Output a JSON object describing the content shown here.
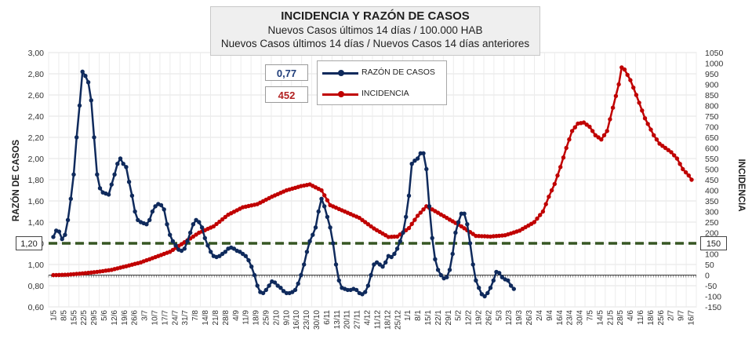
{
  "header": {
    "title": "INCIDENCIA Y RAZÓN DE CASOS",
    "subtitle1": "Nuevos Casos últimos 14 días / 100.000 HAB",
    "subtitle2": "Nuevos Casos últimos 14 días / Nuevos Casos 14 días anteriores"
  },
  "current": {
    "ratio": "0,77",
    "incidence": "452"
  },
  "reference": {
    "ratio": "1,20",
    "incidence": "150"
  },
  "colors": {
    "ratio": "#0f2a5c",
    "incidence": "#c00000",
    "reference": "#375623",
    "ratio_text": "#1f3d7a",
    "incidence_text": "#b22222"
  },
  "chart_data": {
    "type": "line",
    "title": "INCIDENCIA Y RAZÓN DE CASOS",
    "ylabel_left": "RAZÓN DE CASOS",
    "ylabel_right": "INCIDENCIA",
    "yleft_range": [
      0.6,
      3.0
    ],
    "yright_range": [
      -150,
      1050
    ],
    "yleft_ticks": [
      "3,00",
      "2,80",
      "2,60",
      "2,40",
      "2,20",
      "2,00",
      "1,80",
      "1,60",
      "1,40",
      "1,20",
      "1,00",
      "0,80",
      "0,60"
    ],
    "yright_ticks": [
      "1050",
      "1000",
      "950",
      "900",
      "850",
      "800",
      "750",
      "700",
      "650",
      "600",
      "550",
      "500",
      "450",
      "400",
      "350",
      "300",
      "250",
      "200",
      "150",
      "100",
      "50",
      "0",
      "-50",
      "-100",
      "-150"
    ],
    "x_labels": [
      "1/5",
      "8/5",
      "15/5",
      "22/5",
      "29/5",
      "5/6",
      "12/6",
      "19/6",
      "26/6",
      "3/7",
      "10/7",
      "17/7",
      "24/7",
      "31/7",
      "7/8",
      "14/8",
      "21/8",
      "28/8",
      "4/9",
      "11/9",
      "18/9",
      "25/9",
      "2/10",
      "9/10",
      "16/10",
      "23/10",
      "30/10",
      "6/11",
      "13/11",
      "20/11",
      "27/11",
      "4/12",
      "11/12",
      "18/12",
      "25/12",
      "1/1",
      "8/1",
      "15/1",
      "22/1",
      "29/1",
      "5/2",
      "12/2",
      "19/2",
      "26/2",
      "5/3",
      "12/3",
      "19/3",
      "26/3",
      "2/4",
      "9/4",
      "16/4",
      "23/4",
      "30/4",
      "7/5",
      "14/5",
      "21/5",
      "28/5",
      "4/6",
      "11/6",
      "18/6",
      "25/6",
      "2/7",
      "9/7",
      "16/7"
    ],
    "reference_line": {
      "ratio": 1.2,
      "incidence": 150
    },
    "series": [
      {
        "name": "RAZÓN DE CASOS",
        "axis": "left",
        "points": [
          [
            0,
            1.26
          ],
          [
            1,
            1.32
          ],
          [
            2,
            1.31
          ],
          [
            3,
            1.24
          ],
          [
            4,
            1.28
          ],
          [
            5,
            1.42
          ],
          [
            6,
            1.62
          ],
          [
            7,
            1.85
          ],
          [
            8,
            2.2
          ],
          [
            9,
            2.5
          ],
          [
            10,
            2.82
          ],
          [
            11,
            2.78
          ],
          [
            12,
            2.72
          ],
          [
            13,
            2.55
          ],
          [
            14,
            2.2
          ],
          [
            15,
            1.85
          ],
          [
            16,
            1.72
          ],
          [
            17,
            1.68
          ],
          [
            18,
            1.67
          ],
          [
            19,
            1.66
          ],
          [
            21,
            1.85
          ],
          [
            22,
            1.95
          ],
          [
            23,
            2.0
          ],
          [
            24,
            1.95
          ],
          [
            25,
            1.92
          ],
          [
            26,
            1.78
          ],
          [
            27,
            1.65
          ],
          [
            28,
            1.5
          ],
          [
            29,
            1.42
          ],
          [
            30,
            1.4
          ],
          [
            31,
            1.39
          ],
          [
            32,
            1.38
          ],
          [
            33,
            1.42
          ],
          [
            34,
            1.5
          ],
          [
            35,
            1.55
          ],
          [
            36,
            1.57
          ],
          [
            37,
            1.56
          ],
          [
            38,
            1.52
          ],
          [
            39,
            1.38
          ],
          [
            40,
            1.28
          ],
          [
            41,
            1.22
          ],
          [
            42,
            1.18
          ],
          [
            43,
            1.14
          ],
          [
            44,
            1.13
          ],
          [
            45,
            1.15
          ],
          [
            46,
            1.22
          ],
          [
            47,
            1.3
          ],
          [
            48,
            1.38
          ],
          [
            49,
            1.42
          ],
          [
            50,
            1.4
          ],
          [
            51,
            1.35
          ],
          [
            52,
            1.25
          ],
          [
            53,
            1.18
          ],
          [
            54,
            1.12
          ],
          [
            55,
            1.08
          ],
          [
            56,
            1.07
          ],
          [
            57,
            1.08
          ],
          [
            58,
            1.1
          ],
          [
            59,
            1.12
          ],
          [
            60,
            1.15
          ],
          [
            61,
            1.16
          ],
          [
            62,
            1.15
          ],
          [
            63,
            1.13
          ],
          [
            64,
            1.12
          ],
          [
            65,
            1.1
          ],
          [
            66,
            1.08
          ],
          [
            67,
            1.04
          ],
          [
            68,
            0.98
          ],
          [
            69,
            0.9
          ],
          [
            70,
            0.8
          ],
          [
            71,
            0.74
          ],
          [
            72,
            0.73
          ],
          [
            73,
            0.76
          ],
          [
            74,
            0.8
          ],
          [
            75,
            0.84
          ],
          [
            76,
            0.83
          ],
          [
            77,
            0.8
          ],
          [
            78,
            0.78
          ],
          [
            79,
            0.75
          ],
          [
            80,
            0.73
          ],
          [
            81,
            0.73
          ],
          [
            82,
            0.74
          ],
          [
            83,
            0.76
          ],
          [
            84,
            0.82
          ],
          [
            85,
            0.9
          ],
          [
            86,
            1.0
          ],
          [
            87,
            1.12
          ],
          [
            88,
            1.22
          ],
          [
            89,
            1.28
          ],
          [
            90,
            1.35
          ],
          [
            91,
            1.5
          ],
          [
            92,
            1.62
          ],
          [
            93,
            1.55
          ],
          [
            94,
            1.45
          ],
          [
            95,
            1.35
          ],
          [
            96,
            1.2
          ],
          [
            97,
            1.0
          ],
          [
            98,
            0.85
          ],
          [
            99,
            0.78
          ],
          [
            100,
            0.77
          ],
          [
            101,
            0.76
          ],
          [
            102,
            0.76
          ],
          [
            103,
            0.77
          ],
          [
            104,
            0.76
          ],
          [
            105,
            0.73
          ],
          [
            106,
            0.72
          ],
          [
            107,
            0.74
          ],
          [
            108,
            0.8
          ],
          [
            109,
            0.9
          ],
          [
            110,
            1.0
          ],
          [
            111,
            1.02
          ],
          [
            112,
            1.0
          ],
          [
            113,
            0.98
          ],
          [
            114,
            1.02
          ],
          [
            115,
            1.08
          ],
          [
            116,
            1.07
          ],
          [
            117,
            1.1
          ],
          [
            118,
            1.15
          ],
          [
            119,
            1.22
          ],
          [
            120,
            1.3
          ],
          [
            121,
            1.45
          ],
          [
            122,
            1.65
          ],
          [
            123,
            1.95
          ],
          [
            124,
            1.98
          ],
          [
            125,
            2.0
          ],
          [
            126,
            2.05
          ],
          [
            127,
            2.05
          ],
          [
            128,
            1.9
          ],
          [
            129,
            1.55
          ],
          [
            130,
            1.25
          ],
          [
            131,
            1.05
          ],
          [
            132,
            0.95
          ],
          [
            133,
            0.9
          ],
          [
            134,
            0.87
          ],
          [
            135,
            0.88
          ],
          [
            136,
            0.95
          ],
          [
            137,
            1.1
          ],
          [
            138,
            1.3
          ],
          [
            139,
            1.4
          ],
          [
            140,
            1.48
          ],
          [
            141,
            1.48
          ],
          [
            142,
            1.38
          ],
          [
            143,
            1.2
          ],
          [
            144,
            1.0
          ],
          [
            145,
            0.85
          ],
          [
            146,
            0.78
          ],
          [
            147,
            0.72
          ],
          [
            148,
            0.7
          ],
          [
            149,
            0.73
          ],
          [
            150,
            0.78
          ],
          [
            151,
            0.85
          ],
          [
            152,
            0.93
          ],
          [
            153,
            0.92
          ],
          [
            154,
            0.88
          ],
          [
            155,
            0.86
          ],
          [
            156,
            0.85
          ],
          [
            157,
            0.8
          ],
          [
            158,
            0.77
          ]
        ]
      },
      {
        "name": "INCIDENCIA",
        "axis": "right",
        "points": [
          [
            0,
            0
          ],
          [
            5,
            2
          ],
          [
            10,
            8
          ],
          [
            15,
            15
          ],
          [
            20,
            25
          ],
          [
            25,
            42
          ],
          [
            30,
            60
          ],
          [
            35,
            85
          ],
          [
            40,
            110
          ],
          [
            45,
            155
          ],
          [
            50,
            200
          ],
          [
            55,
            230
          ],
          [
            60,
            285
          ],
          [
            65,
            320
          ],
          [
            70,
            335
          ],
          [
            75,
            370
          ],
          [
            80,
            400
          ],
          [
            85,
            420
          ],
          [
            88,
            428
          ],
          [
            92,
            400
          ],
          [
            95,
            330
          ],
          [
            100,
            300
          ],
          [
            105,
            270
          ],
          [
            110,
            220
          ],
          [
            115,
            180
          ],
          [
            118,
            182
          ],
          [
            122,
            222
          ],
          [
            125,
            280
          ],
          [
            128,
            325
          ],
          [
            130,
            310
          ],
          [
            135,
            270
          ],
          [
            140,
            230
          ],
          [
            145,
            185
          ],
          [
            150,
            182
          ],
          [
            155,
            188
          ],
          [
            160,
            210
          ],
          [
            165,
            250
          ],
          [
            168,
            300
          ],
          [
            170,
            370
          ],
          [
            172,
            430
          ],
          [
            174,
            510
          ],
          [
            176,
            600
          ],
          [
            178,
            680
          ],
          [
            180,
            715
          ],
          [
            182,
            720
          ],
          [
            184,
            700
          ],
          [
            186,
            660
          ],
          [
            188,
            640
          ],
          [
            190,
            680
          ],
          [
            192,
            790
          ],
          [
            194,
            900
          ],
          [
            195,
            980
          ],
          [
            196,
            970
          ],
          [
            198,
            920
          ],
          [
            200,
            850
          ],
          [
            203,
            740
          ],
          [
            206,
            660
          ],
          [
            208,
            620
          ],
          [
            210,
            600
          ],
          [
            212,
            580
          ],
          [
            214,
            550
          ],
          [
            216,
            500
          ],
          [
            218,
            470
          ],
          [
            219,
            450
          ]
        ]
      }
    ]
  }
}
